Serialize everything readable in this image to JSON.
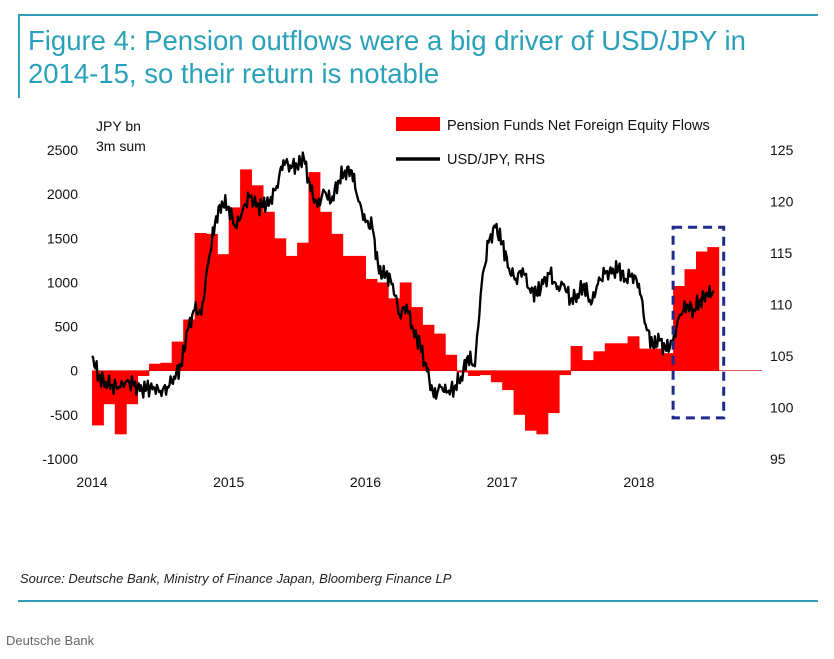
{
  "title": "Figure 4: Pension outflows were a big driver of USD/JPY in 2014-15, so their return is notable",
  "source": "Source: Deutsche Bank, Ministry of Finance Japan, Bloomberg Finance LP",
  "footer": "Deutsche Bank",
  "colors": {
    "accent": "#2aa1b8",
    "bars": "#ff0000",
    "line": "#000000",
    "highlight": "#1f2a8c"
  },
  "chart_data": {
    "type": "bar",
    "left_axis_label_line1": "JPY bn",
    "left_axis_label_line2": "3m sum",
    "y_left": {
      "range": [
        -1000,
        2500
      ],
      "ticks": [
        -1000,
        -500,
        0,
        500,
        1000,
        1500,
        2000,
        2500
      ]
    },
    "y_right": {
      "range": [
        95,
        125
      ],
      "ticks": [
        95,
        100,
        105,
        110,
        115,
        120,
        125
      ]
    },
    "x_axis": {
      "range": [
        2014.0,
        2018.9
      ],
      "tick_labels": [
        "2014",
        "2015",
        "2016",
        "2017",
        "2018"
      ],
      "tick_values": [
        2014,
        2015,
        2016,
        2017,
        2018
      ]
    },
    "legend": {
      "position": "top-right"
    },
    "series": [
      {
        "name": "Pension Funds Net Foreign Equity Flows",
        "type": "bar",
        "axis": "left",
        "x": [
          2014.0,
          2014.083,
          2014.167,
          2014.25,
          2014.333,
          2014.417,
          2014.5,
          2014.583,
          2014.667,
          2014.75,
          2014.833,
          2014.917,
          2015.0,
          2015.083,
          2015.167,
          2015.25,
          2015.333,
          2015.417,
          2015.5,
          2015.583,
          2015.667,
          2015.75,
          2015.833,
          2015.917,
          2016.0,
          2016.083,
          2016.167,
          2016.25,
          2016.333,
          2016.417,
          2016.5,
          2016.583,
          2016.667,
          2016.75,
          2016.833,
          2016.917,
          2017.0,
          2017.083,
          2017.167,
          2017.25,
          2017.333,
          2017.417,
          2017.5,
          2017.583,
          2017.667,
          2017.75,
          2017.833,
          2017.917,
          2018.0,
          2018.083,
          2018.167,
          2018.25,
          2018.333,
          2018.417,
          2018.5
        ],
        "values": [
          -620,
          -380,
          -720,
          -380,
          -60,
          80,
          90,
          330,
          580,
          1560,
          1550,
          1320,
          1850,
          2280,
          2100,
          1800,
          1500,
          1300,
          1450,
          2250,
          1800,
          1550,
          1300,
          1300,
          1040,
          1000,
          820,
          1000,
          720,
          520,
          420,
          180,
          -20,
          -60,
          -50,
          -130,
          -220,
          -500,
          -680,
          -720,
          -480,
          -50,
          280,
          120,
          220,
          310,
          310,
          390,
          250,
          250,
          200,
          960,
          1150,
          1350,
          1400
        ],
        "values_are_approximate": true
      },
      {
        "name": "USD/JPY, RHS",
        "type": "line",
        "axis": "right",
        "x": [
          2014.0,
          2014.05,
          2014.1,
          2014.15,
          2014.2,
          2014.25,
          2014.3,
          2014.35,
          2014.4,
          2014.45,
          2014.5,
          2014.55,
          2014.6,
          2014.65,
          2014.7,
          2014.75,
          2014.8,
          2014.85,
          2014.9,
          2014.95,
          2015.0,
          2015.05,
          2015.1,
          2015.15,
          2015.2,
          2015.25,
          2015.3,
          2015.35,
          2015.4,
          2015.45,
          2015.5,
          2015.55,
          2015.6,
          2015.65,
          2015.7,
          2015.75,
          2015.8,
          2015.85,
          2015.9,
          2015.95,
          2016.0,
          2016.05,
          2016.1,
          2016.15,
          2016.2,
          2016.25,
          2016.3,
          2016.35,
          2016.4,
          2016.45,
          2016.5,
          2016.55,
          2016.6,
          2016.65,
          2016.7,
          2016.75,
          2016.8,
          2016.85,
          2016.9,
          2016.95,
          2017.0,
          2017.05,
          2017.1,
          2017.15,
          2017.2,
          2017.25,
          2017.3,
          2017.35,
          2017.4,
          2017.45,
          2017.5,
          2017.55,
          2017.6,
          2017.65,
          2017.7,
          2017.75,
          2017.8,
          2017.85,
          2017.9,
          2017.95,
          2018.0,
          2018.05,
          2018.1,
          2018.15,
          2018.2,
          2018.25,
          2018.3,
          2018.35,
          2018.4,
          2018.45,
          2018.5,
          2018.55
        ],
        "values": [
          105.0,
          103.0,
          102.5,
          102.2,
          102.0,
          102.5,
          102.2,
          101.6,
          101.8,
          102.0,
          101.6,
          102.0,
          103.0,
          104.0,
          107.5,
          109.5,
          109.0,
          114.0,
          118.0,
          120.0,
          119.5,
          117.5,
          119.0,
          120.5,
          119.5,
          119.5,
          120.0,
          121.5,
          124.0,
          123.5,
          123.5,
          124.2,
          121.0,
          119.5,
          121.0,
          120.0,
          122.0,
          123.0,
          123.0,
          120.0,
          118.0,
          117.5,
          113.0,
          113.0,
          112.0,
          109.0,
          110.0,
          107.5,
          106.0,
          103.5,
          101.0,
          102.0,
          101.5,
          102.0,
          103.0,
          105.0,
          104.0,
          112.0,
          116.0,
          117.5,
          116.0,
          113.5,
          112.5,
          113.5,
          111.5,
          111.0,
          112.0,
          113.0,
          111.5,
          112.0,
          110.5,
          111.0,
          112.0,
          110.0,
          112.0,
          113.0,
          113.0,
          113.5,
          112.5,
          113.0,
          112.0,
          108.0,
          106.0,
          106.5,
          105.5,
          106.5,
          109.0,
          110.0,
          109.5,
          110.5,
          111.0,
          111.2
        ],
        "values_are_approximate": true
      }
    ],
    "highlight_box": {
      "x_range": [
        2018.25,
        2018.62
      ],
      "y_right_range": [
        99,
        117.5
      ],
      "style": "dashed"
    }
  }
}
